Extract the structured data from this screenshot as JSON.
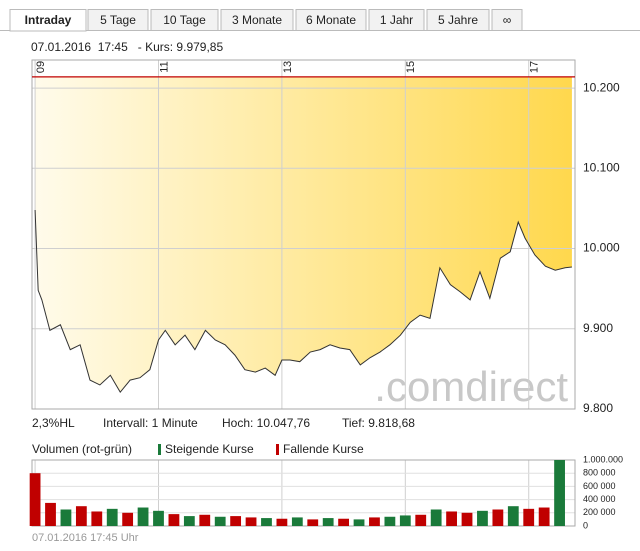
{
  "tabs": [
    "Intraday",
    "5 Tage",
    "10 Tage",
    "3 Monate",
    "6 Monate",
    "1 Jahr",
    "5 Jahre",
    "∞"
  ],
  "active_tab": 0,
  "header": "07.01.2016  17:45   - Kurs: 9.979,85",
  "watermark": ".comdirect",
  "stats": [
    "2,3%HL",
    "Intervall: 1 Minute",
    "Hoch: 10.047,76",
    "Tief: 9.818,68"
  ],
  "volume_legend": {
    "title": "Volumen (rot-grün)"
  },
  "footer": "07.01.2016 17:45 Uhr",
  "chart_data": [
    {
      "type": "line",
      "x": [
        9.0,
        9.05,
        9.11,
        9.24,
        9.41,
        9.57,
        9.73,
        9.89,
        10.05,
        10.22,
        10.38,
        10.54,
        10.7,
        10.86,
        11.0,
        11.11,
        11.27,
        11.43,
        11.59,
        11.76,
        11.92,
        12.08,
        12.24,
        12.4,
        12.57,
        12.73,
        12.89,
        13.0,
        13.13,
        13.29,
        13.46,
        13.62,
        13.78,
        13.94,
        14.1,
        14.27,
        14.43,
        14.59,
        14.75,
        14.92,
        15.08,
        15.24,
        15.4,
        15.56,
        15.73,
        15.89,
        16.05,
        16.21,
        16.37,
        16.54,
        16.7,
        16.83,
        16.94,
        17.1,
        17.27,
        17.43,
        17.59,
        17.7
      ],
      "series": [
        {
          "color": "#333333",
          "values": [
            10048,
            9948,
            9936,
            9898,
            9905,
            9874,
            9880,
            9836,
            9830,
            9842,
            9821,
            9836,
            9839,
            9849,
            9886,
            9898,
            9880,
            9892,
            9874,
            9898,
            9886,
            9880,
            9867,
            9849,
            9846,
            9851,
            9842,
            9861,
            9861,
            9859,
            9871,
            9874,
            9880,
            9876,
            9874,
            9855,
            9864,
            9871,
            9880,
            9892,
            9908,
            9917,
            9913,
            9976,
            9955,
            9946,
            9936,
            9971,
            9938,
            9988,
            9996,
            10033,
            10013,
            9992,
            9978,
            9973,
            9976,
            9977
          ]
        }
      ],
      "xlim": [
        8.95,
        17.75
      ],
      "xticks": [
        {
          "value": 9,
          "label": "09"
        },
        11,
        13,
        15,
        17
      ],
      "ylim": [
        9800,
        10235
      ],
      "yticks": [
        {
          "value": 9800,
          "label": "9.800"
        },
        {
          "value": 9900,
          "label": "9.900"
        },
        {
          "value": 10000,
          "label": "10.000"
        },
        {
          "value": 10100,
          "label": "10.100"
        },
        {
          "value": 10200,
          "label": "10.200"
        }
      ],
      "reference_line": {
        "value": 10214,
        "color": "#c00000"
      },
      "fill_gradient": [
        "#fffbeb",
        "#ffd84d"
      ],
      "grid": true
    },
    {
      "type": "bar",
      "x": [
        9.0,
        9.25,
        9.5,
        9.75,
        10.0,
        10.25,
        10.5,
        10.75,
        11.0,
        11.25,
        11.5,
        11.75,
        12.0,
        12.25,
        12.5,
        12.75,
        13.0,
        13.25,
        13.5,
        13.75,
        14.0,
        14.25,
        14.5,
        14.75,
        15.0,
        15.25,
        15.5,
        15.75,
        16.0,
        16.25,
        16.5,
        16.75,
        17.0,
        17.25,
        17.5
      ],
      "series": [
        {
          "name": "Steigende Kurse",
          "color": "#1a7a3a",
          "values": [
            null,
            null,
            250000,
            null,
            null,
            260000,
            null,
            280000,
            230000,
            null,
            150000,
            null,
            140000,
            null,
            null,
            120000,
            null,
            130000,
            null,
            120000,
            null,
            100000,
            null,
            140000,
            160000,
            null,
            250000,
            null,
            null,
            230000,
            null,
            300000,
            null,
            null,
            1000000
          ]
        },
        {
          "name": "Fallende Kurse",
          "color": "#c00000",
          "values": [
            800000,
            350000,
            null,
            300000,
            220000,
            null,
            200000,
            null,
            null,
            180000,
            null,
            170000,
            null,
            150000,
            130000,
            null,
            110000,
            null,
            100000,
            null,
            110000,
            null,
            130000,
            null,
            null,
            170000,
            null,
            220000,
            200000,
            null,
            250000,
            null,
            260000,
            280000,
            null
          ]
        }
      ],
      "xlim": [
        8.95,
        17.75
      ],
      "ylim": [
        0,
        1000000
      ],
      "yticks": [
        0,
        {
          "value": 200000,
          "label": "200 000"
        },
        {
          "value": 400000,
          "label": "400 000"
        },
        {
          "value": 600000,
          "label": "600 000"
        },
        {
          "value": 800000,
          "label": "800 000"
        },
        {
          "value": 1000000,
          "label": "1.000.000"
        }
      ],
      "grid": true
    }
  ]
}
